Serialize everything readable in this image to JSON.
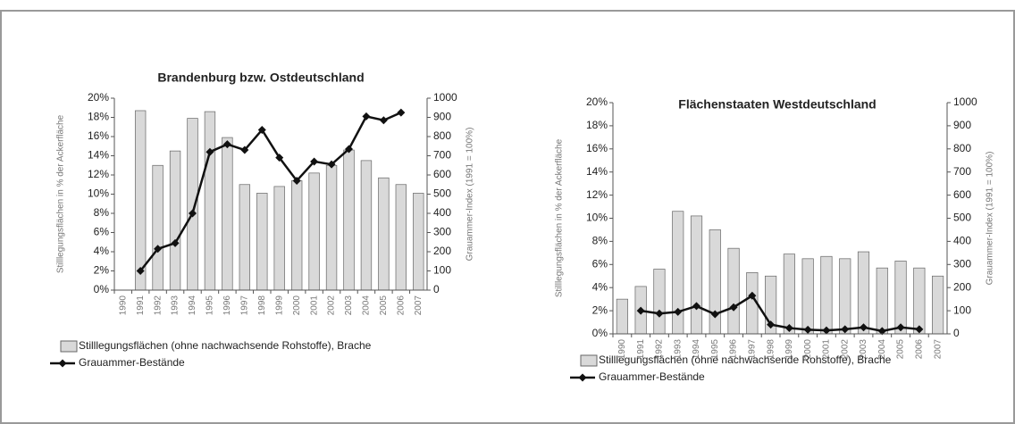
{
  "chart_data": [
    {
      "type": "bar_line",
      "title": "Brandenburg bzw. Ostdeutschland",
      "y_label": "Stilllegungsflächen in % der Ackerfläche",
      "y2_label": "Grauammer-Index (1991 = 100%)",
      "categories": [
        "1990",
        "1991",
        "1992",
        "1993",
        "1994",
        "1995",
        "1996",
        "1997",
        "1998",
        "1999",
        "2000",
        "2001",
        "2002",
        "2003",
        "2004",
        "2005",
        "2006",
        "2007"
      ],
      "series": [
        {
          "name": "Stilllegungsflächen (ohne nachwachsende Rohstoffe), Brache",
          "kind": "bar",
          "color": "#d9d9d9",
          "values": [
            null,
            18.7,
            13,
            14.5,
            17.9,
            18.6,
            15.9,
            11,
            10.1,
            10.8,
            11.4,
            12.2,
            13,
            14.6,
            13.5,
            11.7,
            11,
            10.1
          ]
        },
        {
          "name": "Grauammer-Bestände",
          "kind": "line",
          "axis": "y2",
          "color": "#111111",
          "values": [
            null,
            100,
            215,
            245,
            400,
            720,
            760,
            730,
            835,
            690,
            570,
            670,
            655,
            735,
            905,
            885,
            925,
            null
          ]
        }
      ],
      "ylim": [
        0,
        20
      ],
      "yticks": [
        {
          "value": 0,
          "label": "0%"
        },
        {
          "value": 2,
          "label": "2%"
        },
        {
          "value": 4,
          "label": "4%"
        },
        {
          "value": 6,
          "label": "6%"
        },
        {
          "value": 8,
          "label": "8%"
        },
        {
          "value": 10,
          "label": "10%"
        },
        {
          "value": 12,
          "label": "12%"
        },
        {
          "value": 14,
          "label": "14%"
        },
        {
          "value": 16,
          "label": "16%"
        },
        {
          "value": 18,
          "label": "18%"
        },
        {
          "value": 20,
          "label": "20%"
        }
      ],
      "y2lim": [
        0,
        1000
      ],
      "y2ticks": [
        0,
        100,
        200,
        300,
        400,
        500,
        600,
        700,
        800,
        900,
        1000
      ]
    },
    {
      "type": "bar_line",
      "title": "Flächenstaaten Westdeutschland",
      "y_label": "Stilllegungsflächen in % der Ackerfläche",
      "y2_label": "Grauammer-Index (1991 = 100%)",
      "categories": [
        "1990",
        "1991",
        "1992",
        "1993",
        "1994",
        "1995",
        "1996",
        "1997",
        "1998",
        "1999",
        "2000",
        "2001",
        "2002",
        "2003",
        "2004",
        "2005",
        "2006",
        "2007"
      ],
      "series": [
        {
          "name": "Stilllegungsflächen (ohne nachwachsende Rohstoffe), Brache",
          "kind": "bar",
          "color": "#d9d9d9",
          "values": [
            3.0,
            4.1,
            5.6,
            10.6,
            10.2,
            9.0,
            7.4,
            5.3,
            5.0,
            6.9,
            6.5,
            6.7,
            6.5,
            7.1,
            5.7,
            6.3,
            5.7,
            5.0
          ]
        },
        {
          "name": "Grauammer-Bestände",
          "kind": "line",
          "axis": "y2",
          "color": "#111111",
          "values": [
            null,
            100,
            88,
            95,
            120,
            85,
            115,
            165,
            40,
            25,
            18,
            15,
            20,
            28,
            12,
            28,
            20,
            null
          ]
        }
      ],
      "ylim": [
        0,
        20
      ],
      "yticks": [
        {
          "value": 0,
          "label": "0%"
        },
        {
          "value": 2,
          "label": "2%"
        },
        {
          "value": 4,
          "label": "4%"
        },
        {
          "value": 6,
          "label": "6%"
        },
        {
          "value": 8,
          "label": "8%"
        },
        {
          "value": 10,
          "label": "10%"
        },
        {
          "value": 12,
          "label": "12%"
        },
        {
          "value": 14,
          "label": "14%"
        },
        {
          "value": 16,
          "label": "16%"
        },
        {
          "value": 18,
          "label": "18%"
        },
        {
          "value": 20,
          "label": "20%"
        }
      ],
      "y2lim": [
        0,
        1000
      ],
      "y2ticks": [
        0,
        100,
        200,
        300,
        400,
        500,
        600,
        700,
        800,
        900,
        1000
      ]
    }
  ]
}
